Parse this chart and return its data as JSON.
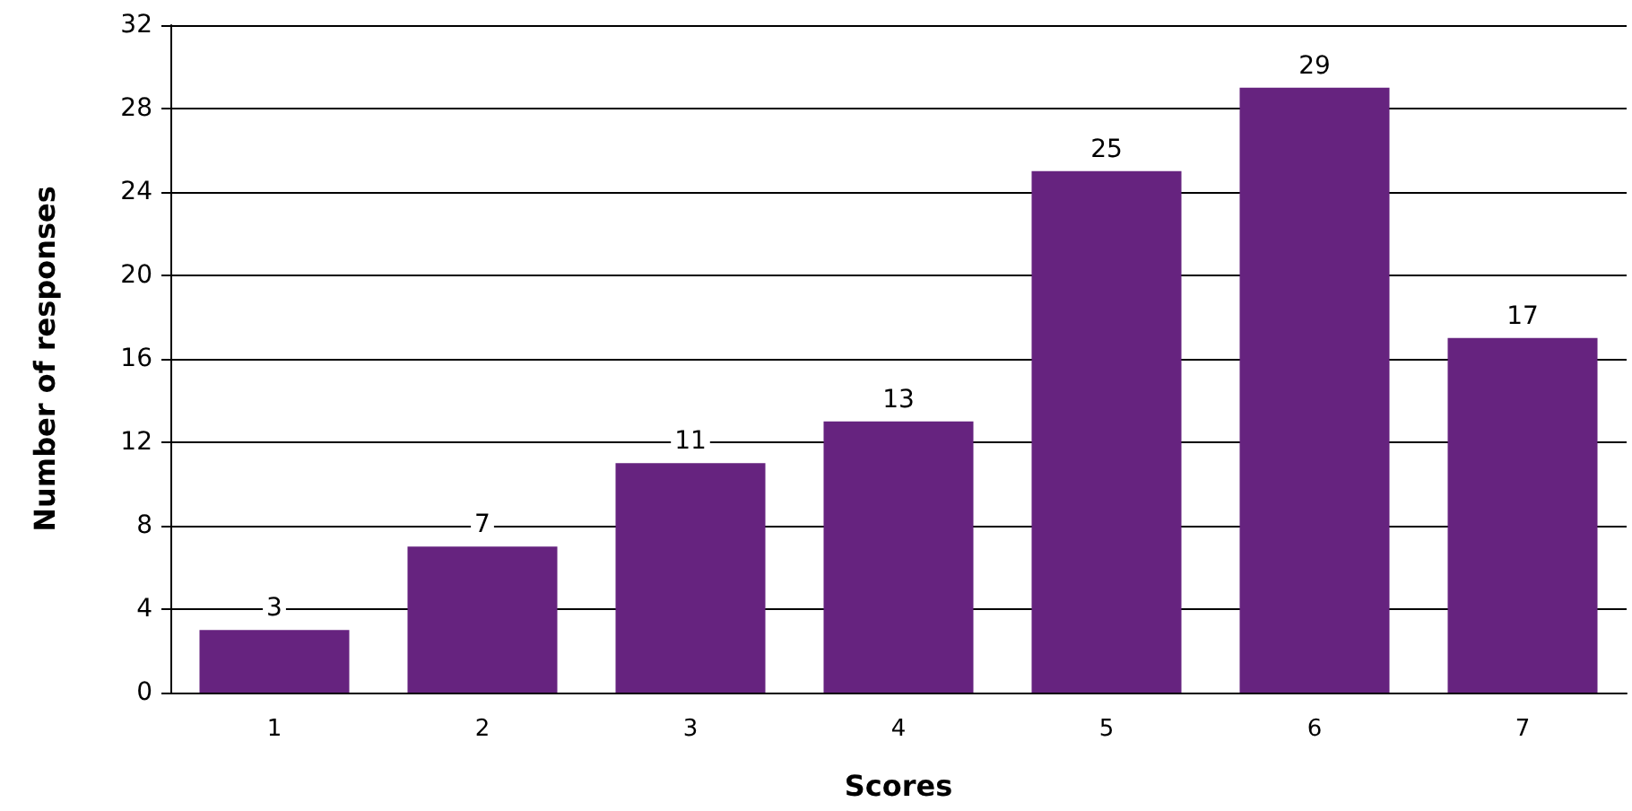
{
  "chart_data": {
    "type": "bar",
    "xlabel": "Scores",
    "ylabel": "Number of responses",
    "categories": [
      "1",
      "2",
      "3",
      "4",
      "5",
      "6",
      "7"
    ],
    "values": [
      3,
      7,
      11,
      13,
      25,
      29,
      17
    ],
    "color": "#66237f",
    "ylim": [
      0,
      32
    ],
    "yticks": [
      0,
      4,
      8,
      12,
      16,
      20,
      24,
      28,
      32
    ],
    "grid": "y",
    "data_labels": true
  }
}
